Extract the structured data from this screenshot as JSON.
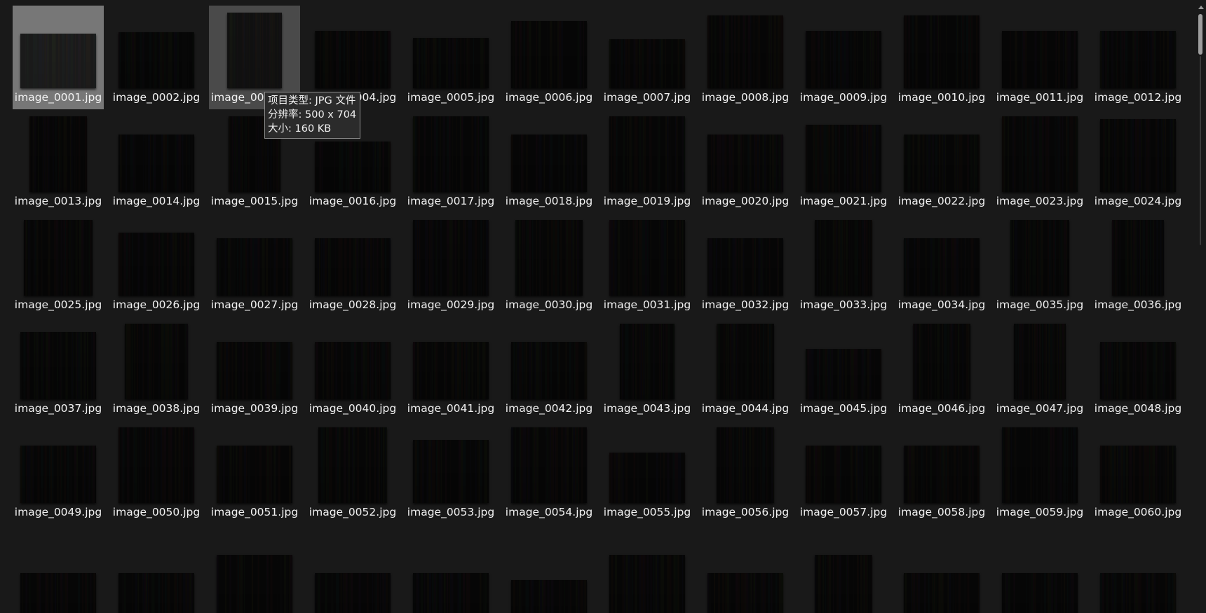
{
  "selected": "image_0001.jpg",
  "hovered": "image_0003.jpg",
  "tooltip": {
    "type": "项目类型: JPG 文件",
    "resolution": "分辨率: 500 x 704",
    "size": "大小: 160 KB"
  },
  "files": [
    "image_0001.jpg",
    "image_0002.jpg",
    "image_0003.jpg",
    "image_0004.jpg",
    "image_0005.jpg",
    "image_0006.jpg",
    "image_0007.jpg",
    "image_0008.jpg",
    "image_0009.jpg",
    "image_0010.jpg",
    "image_0011.jpg",
    "image_0012.jpg",
    "image_0013.jpg",
    "image_0014.jpg",
    "image_0015.jpg",
    "image_0016.jpg",
    "image_0017.jpg",
    "image_0018.jpg",
    "image_0019.jpg",
    "image_0020.jpg",
    "image_0021.jpg",
    "image_0022.jpg",
    "image_0023.jpg",
    "image_0024.jpg",
    "image_0025.jpg",
    "image_0026.jpg",
    "image_0027.jpg",
    "image_0028.jpg",
    "image_0029.jpg",
    "image_0030.jpg",
    "image_0031.jpg",
    "image_0032.jpg",
    "image_0033.jpg",
    "image_0034.jpg",
    "image_0035.jpg",
    "image_0036.jpg",
    "image_0037.jpg",
    "image_0038.jpg",
    "image_0039.jpg",
    "image_0040.jpg",
    "image_0041.jpg",
    "image_0042.jpg",
    "image_0043.jpg",
    "image_0044.jpg",
    "image_0045.jpg",
    "image_0046.jpg",
    "image_0047.jpg",
    "image_0048.jpg",
    "image_0049.jpg",
    "image_0050.jpg",
    "image_0051.jpg",
    "image_0052.jpg",
    "image_0053.jpg",
    "image_0054.jpg",
    "image_0055.jpg",
    "image_0056.jpg",
    "image_0057.jpg",
    "image_0058.jpg",
    "image_0059.jpg",
    "image_0060.jpg",
    "",
    "",
    "",
    "",
    "",
    "",
    "",
    "",
    "",
    "",
    "",
    ""
  ],
  "colors": {
    "background": "#191919",
    "selected": "#777777",
    "hover": "#4a4a4a",
    "text": "#f2f2f2"
  }
}
